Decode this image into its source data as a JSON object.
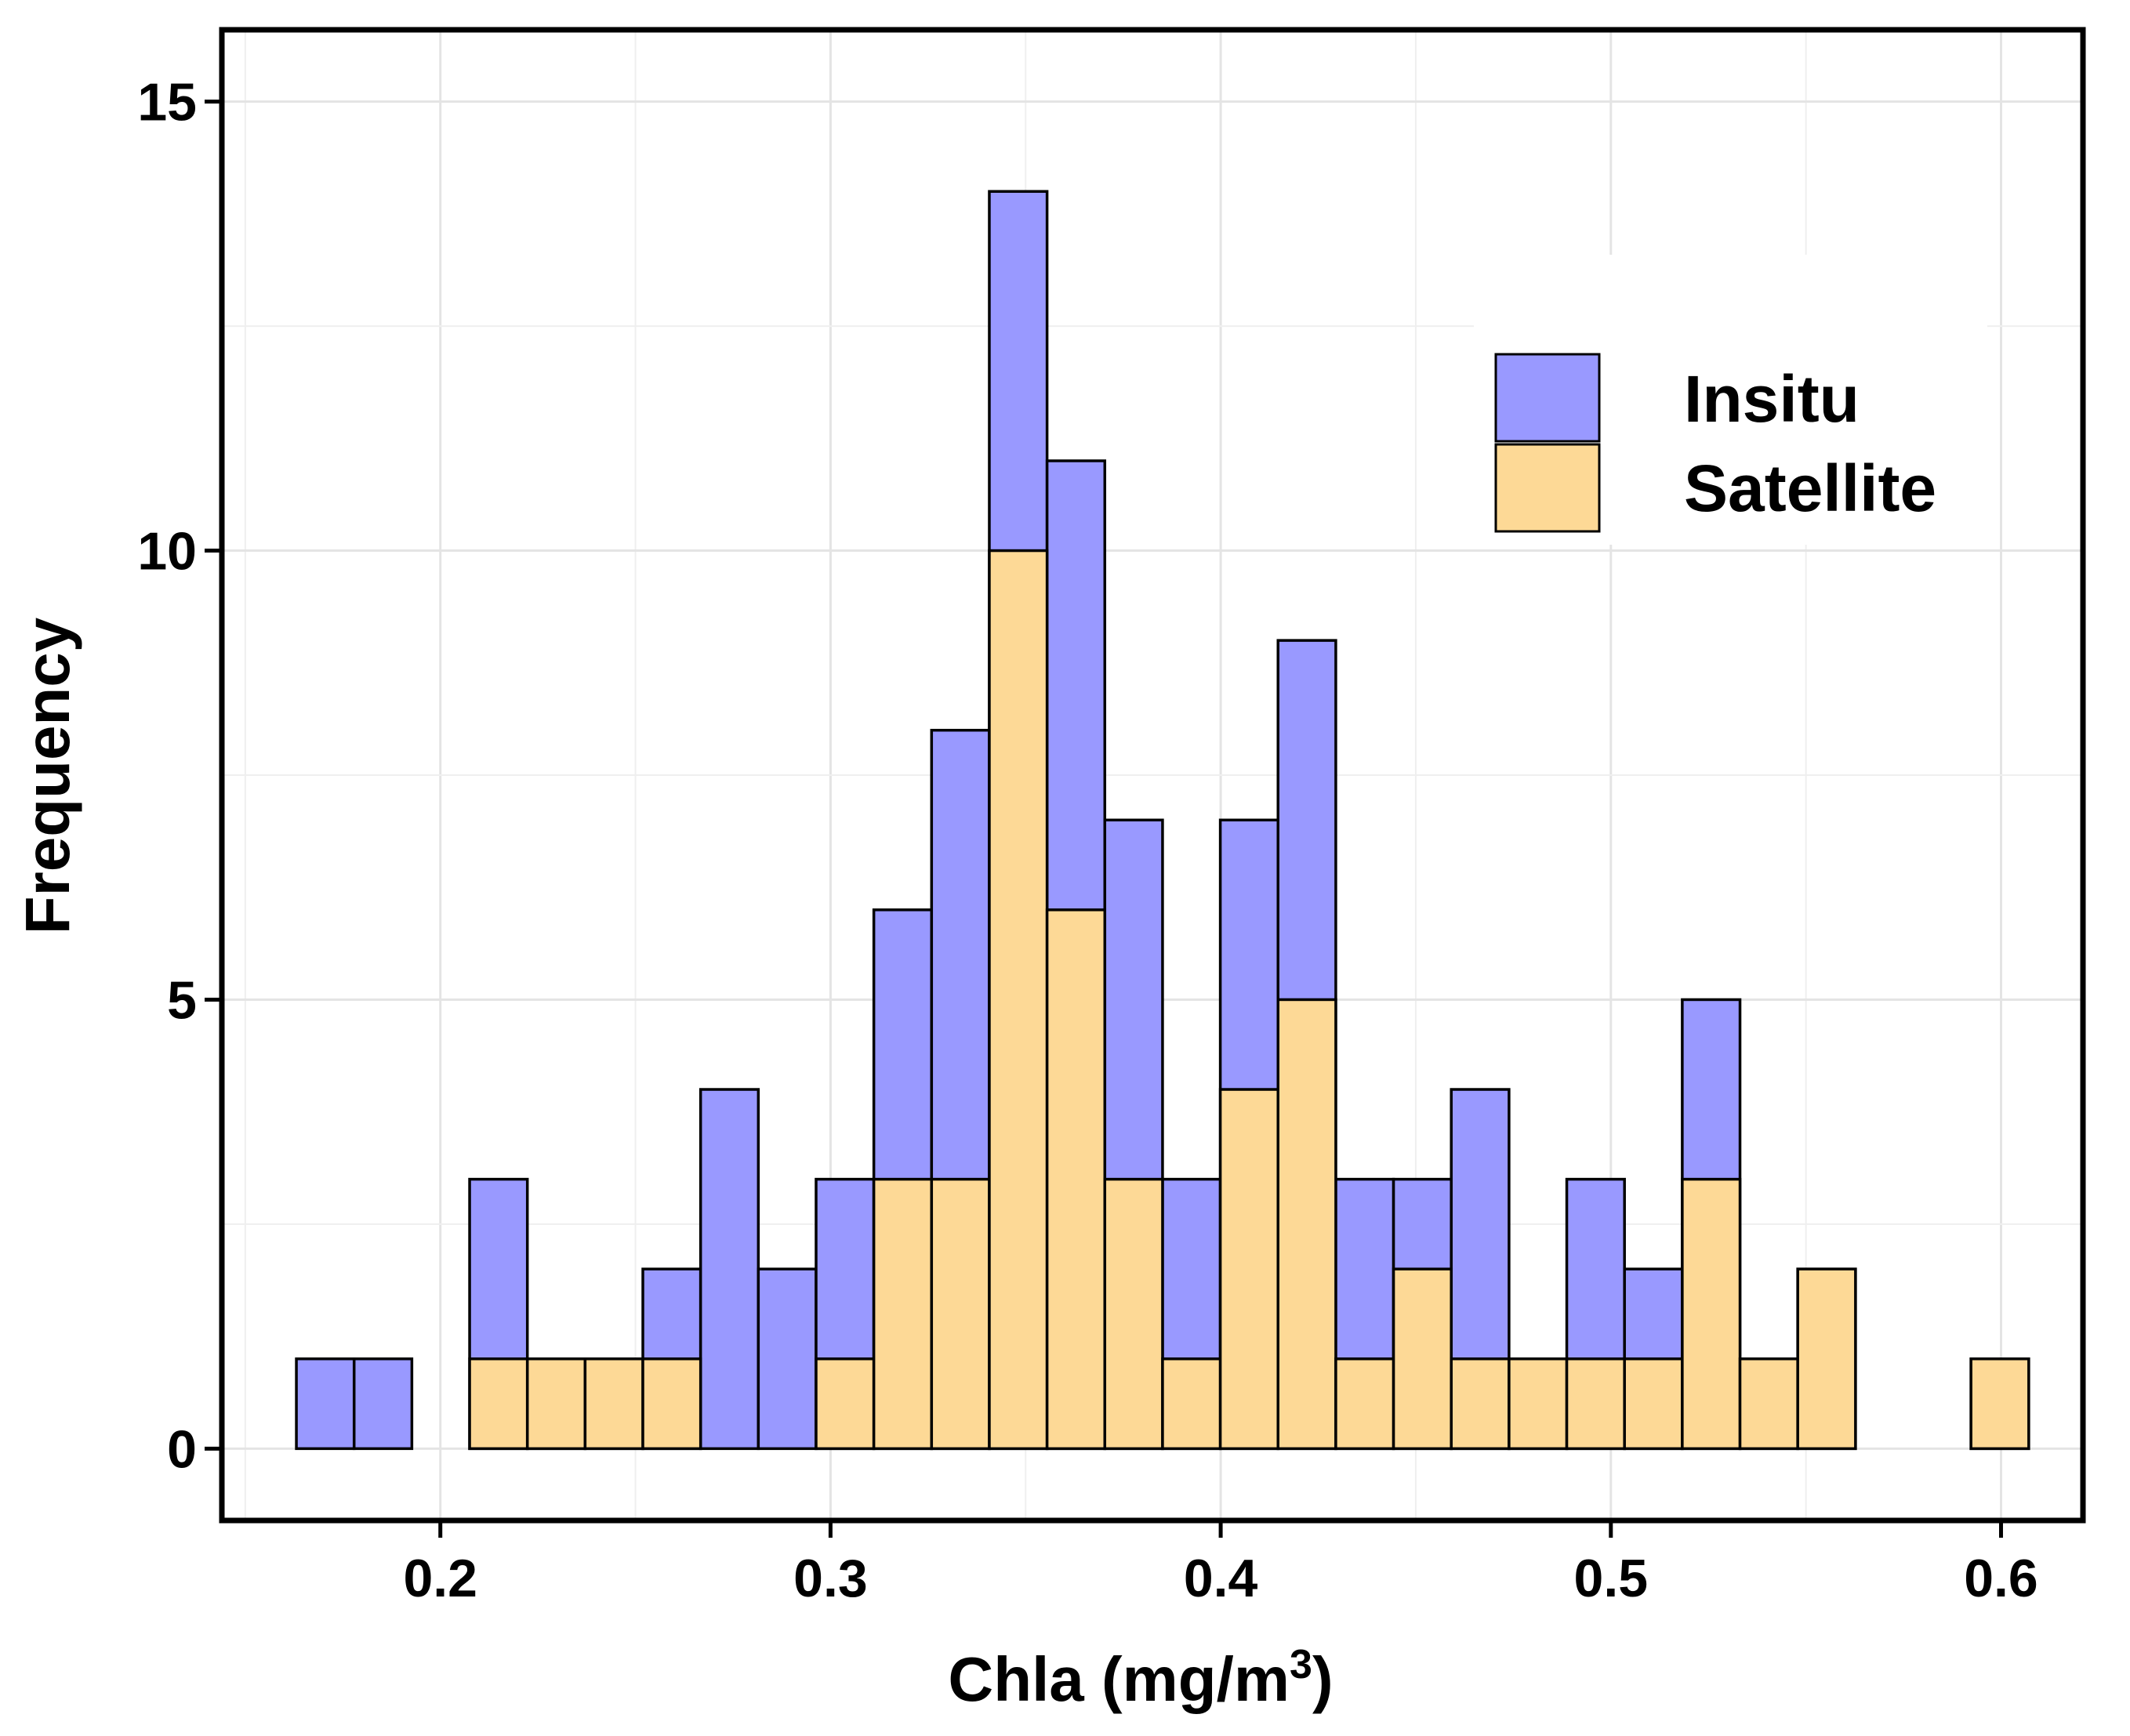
{
  "chart_data": {
    "type": "bar",
    "stacked": false,
    "overlapping": true,
    "xlabel": "Chla (mg/m",
    "xlabel_superscript": "3",
    "xlabel_close": ")",
    "ylabel": "Frequency",
    "xlim": [
      0.144,
      0.621
    ],
    "ylim": [
      -0.8,
      15.8
    ],
    "xticks": [
      0.2,
      0.3,
      0.4,
      0.5,
      0.6
    ],
    "xtick_labels": [
      "0.2",
      "0.3",
      "0.4",
      "0.5",
      "0.6"
    ],
    "yticks": [
      0,
      5,
      10,
      15
    ],
    "ytick_labels": [
      "0",
      "5",
      "10",
      "15"
    ],
    "grid": true,
    "legend_position": "top-right",
    "bin_width": 0.0148,
    "x": [
      0.1705,
      0.1853,
      0.2001,
      0.2149,
      0.2297,
      0.2445,
      0.2593,
      0.2741,
      0.2889,
      0.3037,
      0.3185,
      0.3333,
      0.3481,
      0.3629,
      0.3777,
      0.3925,
      0.4073,
      0.4221,
      0.4369,
      0.4517,
      0.4665,
      0.4813,
      0.4961,
      0.5109,
      0.5257,
      0.5405,
      0.5553,
      0.5701,
      0.5849,
      0.5997
    ],
    "series": [
      {
        "name": "Insitu",
        "color": "#9999ff",
        "values": [
          1,
          1,
          0,
          3,
          1,
          1,
          2,
          4,
          2,
          3,
          6,
          8,
          14,
          11,
          7,
          3,
          7,
          9,
          3,
          3,
          4,
          1,
          3,
          2,
          5,
          1,
          2,
          0,
          0,
          1
        ]
      },
      {
        "name": "Satellite",
        "color": "#fdd996",
        "values": [
          0,
          0,
          0,
          1,
          1,
          1,
          1,
          0,
          0,
          1,
          3,
          3,
          10,
          6,
          3,
          1,
          4,
          5,
          1,
          2,
          1,
          1,
          1,
          1,
          3,
          1,
          2,
          0,
          0,
          1
        ]
      }
    ]
  }
}
